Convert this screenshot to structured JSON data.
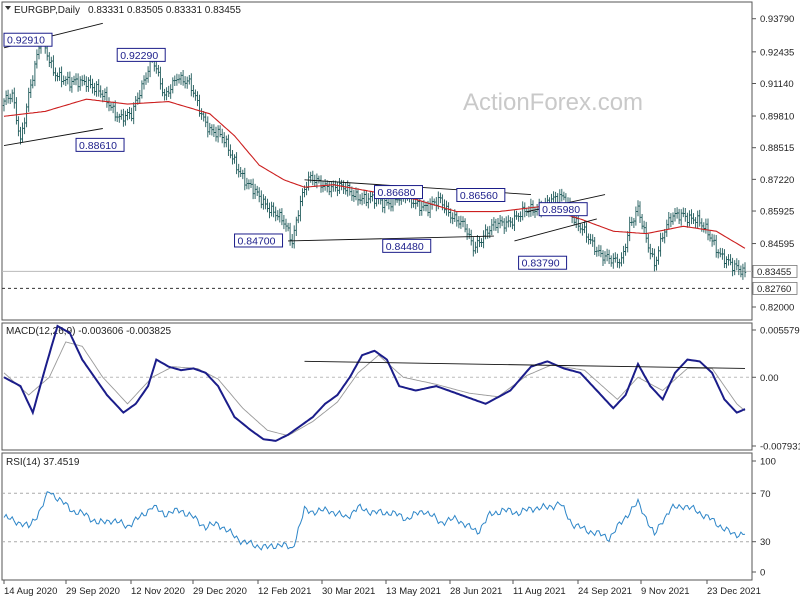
{
  "header": {
    "symbol": "EURGBP,Daily",
    "ohlc": "0.83331 0.83505 0.83331 0.83455"
  },
  "watermark": "ActionForex.com",
  "x_labels": [
    "14 Aug 2020",
    "29 Sep 2020",
    "12 Nov 2020",
    "29 Dec 2020",
    "12 Feb 2021",
    "30 Mar 2021",
    "13 May 2021",
    "28 Jun 2021",
    "11 Aug 2021",
    "24 Sep 2021",
    "9 Nov 2021",
    "23 Dec 2021"
  ],
  "colors": {
    "price": "#1e5a5a",
    "ma": "#cc1f1f",
    "macd": "#1b1d8a",
    "signal": "#9a9a9a",
    "rsi": "#2e86c8",
    "annotation": "#1b1d8a"
  },
  "chart_data": [
    {
      "type": "candlestick",
      "title": "EURGBP,Daily",
      "ylim": [
        0.8155,
        0.9431
      ],
      "y_ticks": [
        "0.93790",
        "0.92435",
        "0.91140",
        "0.89810",
        "0.88515",
        "0.87220",
        "0.85925",
        "0.84595",
        "0.83455",
        "0.82000"
      ],
      "current_price": "0.83455",
      "support_level": "0.82760",
      "price_labels": [
        "0.92910",
        "0.92290",
        "0.88610",
        "0.84700",
        "0.86680",
        "0.84480",
        "0.86560",
        "0.83790",
        "0.85980"
      ],
      "price_path": [
        [
          0,
          0.9042
        ],
        [
          4,
          0.906
        ],
        [
          8,
          0.888
        ],
        [
          12,
          0.9075
        ],
        [
          18,
          0.9291
        ],
        [
          24,
          0.917
        ],
        [
          32,
          0.911
        ],
        [
          40,
          0.913
        ],
        [
          48,
          0.906
        ],
        [
          56,
          0.898
        ],
        [
          62,
          0.898
        ],
        [
          66,
          0.908
        ],
        [
          72,
          0.9229
        ],
        [
          78,
          0.905
        ],
        [
          84,
          0.915
        ],
        [
          90,
          0.911
        ],
        [
          96,
          0.899
        ],
        [
          100,
          0.893
        ],
        [
          106,
          0.889
        ],
        [
          112,
          0.88
        ],
        [
          118,
          0.87
        ],
        [
          124,
          0.865
        ],
        [
          130,
          0.86
        ],
        [
          136,
          0.854
        ],
        [
          140,
          0.847
        ],
        [
          144,
          0.864
        ],
        [
          148,
          0.872
        ],
        [
          156,
          0.87
        ],
        [
          166,
          0.868
        ],
        [
          176,
          0.864
        ],
        [
          186,
          0.863
        ],
        [
          196,
          0.865
        ],
        [
          206,
          0.86
        ],
        [
          212,
          0.864
        ],
        [
          218,
          0.857
        ],
        [
          224,
          0.852
        ],
        [
          228,
          0.8448
        ],
        [
          234,
          0.85
        ],
        [
          240,
          0.854
        ],
        [
          248,
          0.856
        ],
        [
          256,
          0.86
        ],
        [
          264,
          0.862
        ],
        [
          272,
          0.8656
        ],
        [
          278,
          0.854
        ],
        [
          284,
          0.848
        ],
        [
          290,
          0.842
        ],
        [
          296,
          0.838
        ],
        [
          300,
          0.839
        ],
        [
          304,
          0.854
        ],
        [
          308,
          0.8598
        ],
        [
          312,
          0.847
        ],
        [
          316,
          0.8379
        ],
        [
          320,
          0.85
        ],
        [
          324,
          0.856
        ],
        [
          330,
          0.858
        ],
        [
          336,
          0.856
        ],
        [
          342,
          0.85
        ],
        [
          348,
          0.842
        ],
        [
          354,
          0.836
        ],
        [
          360,
          0.8345
        ]
      ],
      "ma_path": [
        [
          0,
          0.898
        ],
        [
          20,
          0.9
        ],
        [
          40,
          0.905
        ],
        [
          60,
          0.903
        ],
        [
          80,
          0.904
        ],
        [
          100,
          0.899
        ],
        [
          112,
          0.89
        ],
        [
          124,
          0.878
        ],
        [
          136,
          0.872
        ],
        [
          146,
          0.869
        ],
        [
          160,
          0.87
        ],
        [
          180,
          0.867
        ],
        [
          200,
          0.864
        ],
        [
          220,
          0.859
        ],
        [
          240,
          0.859
        ],
        [
          260,
          0.861
        ],
        [
          280,
          0.856
        ],
        [
          296,
          0.851
        ],
        [
          312,
          0.85
        ],
        [
          330,
          0.853
        ],
        [
          346,
          0.851
        ],
        [
          360,
          0.844
        ]
      ],
      "trendlines": [
        {
          "name": "channel-top",
          "points": [
            [
              0,
              0.926
            ],
            [
              48,
              0.936
            ]
          ]
        },
        {
          "name": "channel-bottom",
          "points": [
            [
              0,
              0.886
            ],
            [
              48,
              0.893
            ]
          ]
        },
        {
          "name": "triangle-top",
          "points": [
            [
              146,
              0.872
            ],
            [
              256,
              0.866
            ]
          ]
        },
        {
          "name": "triangle-bottom",
          "points": [
            [
              138,
              0.847
            ],
            [
              238,
              0.849
            ]
          ]
        },
        {
          "name": "wedge-top",
          "points": [
            [
              254,
              0.859
            ],
            [
              292,
              0.866
            ]
          ]
        },
        {
          "name": "wedge-bottom",
          "points": [
            [
              248,
              0.847
            ],
            [
              288,
              0.856
            ]
          ]
        }
      ]
    },
    {
      "type": "line",
      "title": "MACD(12,26,9) -0.003606 -0.003825",
      "ylim": [
        -0.008,
        0.0058
      ],
      "y_ticks": [
        "0.005579",
        "0.00",
        "-0.007931"
      ],
      "macd_path": [
        [
          0,
          0.0
        ],
        [
          8,
          -0.001
        ],
        [
          14,
          -0.004
        ],
        [
          20,
          0.001
        ],
        [
          26,
          0.0058
        ],
        [
          32,
          0.005
        ],
        [
          38,
          0.002
        ],
        [
          44,
          0.0
        ],
        [
          50,
          -0.002
        ],
        [
          58,
          -0.004
        ],
        [
          64,
          -0.003
        ],
        [
          70,
          -0.001
        ],
        [
          74,
          0.002
        ],
        [
          80,
          0.0012
        ],
        [
          86,
          0.0008
        ],
        [
          92,
          0.001
        ],
        [
          98,
          0.0005
        ],
        [
          104,
          -0.001
        ],
        [
          112,
          -0.0045
        ],
        [
          120,
          -0.006
        ],
        [
          126,
          -0.007
        ],
        [
          132,
          -0.0072
        ],
        [
          138,
          -0.0065
        ],
        [
          144,
          -0.0055
        ],
        [
          150,
          -0.0045
        ],
        [
          156,
          -0.003
        ],
        [
          162,
          -0.002
        ],
        [
          168,
          0.0
        ],
        [
          174,
          0.0025
        ],
        [
          180,
          0.003
        ],
        [
          186,
          0.002
        ],
        [
          192,
          -0.001
        ],
        [
          200,
          -0.0015
        ],
        [
          210,
          -0.001
        ],
        [
          222,
          -0.002
        ],
        [
          234,
          -0.003
        ],
        [
          246,
          -0.0015
        ],
        [
          256,
          0.0012
        ],
        [
          264,
          0.0018
        ],
        [
          272,
          0.001
        ],
        [
          280,
          0.0005
        ],
        [
          288,
          -0.0015
        ],
        [
          296,
          -0.0035
        ],
        [
          302,
          -0.002
        ],
        [
          308,
          0.0015
        ],
        [
          314,
          -0.001
        ],
        [
          320,
          -0.0025
        ],
        [
          326,
          0.0005
        ],
        [
          332,
          0.002
        ],
        [
          338,
          0.0018
        ],
        [
          344,
          0.0005
        ],
        [
          350,
          -0.0025
        ],
        [
          356,
          -0.004
        ],
        [
          360,
          -0.0036
        ]
      ],
      "signal_path": [
        [
          0,
          0.0005
        ],
        [
          12,
          -0.002
        ],
        [
          22,
          0.0
        ],
        [
          30,
          0.004
        ],
        [
          38,
          0.0035
        ],
        [
          48,
          0.0
        ],
        [
          60,
          -0.003
        ],
        [
          72,
          0.0
        ],
        [
          82,
          0.0012
        ],
        [
          94,
          0.001
        ],
        [
          104,
          -0.0002
        ],
        [
          116,
          -0.0035
        ],
        [
          128,
          -0.006
        ],
        [
          138,
          -0.0066
        ],
        [
          150,
          -0.005
        ],
        [
          162,
          -0.0028
        ],
        [
          172,
          0.0005
        ],
        [
          182,
          0.0025
        ],
        [
          194,
          0.0
        ],
        [
          210,
          -0.0008
        ],
        [
          226,
          -0.0018
        ],
        [
          240,
          -0.0022
        ],
        [
          254,
          0.0002
        ],
        [
          266,
          0.0014
        ],
        [
          282,
          0.0008
        ],
        [
          298,
          -0.0025
        ],
        [
          308,
          0.0
        ],
        [
          320,
          -0.0015
        ],
        [
          332,
          0.001
        ],
        [
          344,
          0.001
        ],
        [
          356,
          -0.003
        ],
        [
          360,
          -0.0038
        ]
      ],
      "trendline": [
        [
          146,
          0.0018
        ],
        [
          360,
          0.001
        ]
      ]
    },
    {
      "type": "line",
      "title": "RSI(14) 37.4519",
      "ylim": [
        0,
        100
      ],
      "y_ticks": [
        "100",
        "70",
        "30",
        "0"
      ],
      "levels": [
        70,
        30
      ],
      "rsi_path": [
        [
          0,
          50
        ],
        [
          6,
          47
        ],
        [
          12,
          42
        ],
        [
          18,
          57
        ],
        [
          22,
          72
        ],
        [
          28,
          63
        ],
        [
          34,
          55
        ],
        [
          40,
          52
        ],
        [
          46,
          45
        ],
        [
          52,
          48
        ],
        [
          60,
          43
        ],
        [
          66,
          50
        ],
        [
          72,
          59
        ],
        [
          78,
          53
        ],
        [
          86,
          56
        ],
        [
          92,
          50
        ],
        [
          98,
          42
        ],
        [
          104,
          45
        ],
        [
          110,
          37
        ],
        [
          116,
          30
        ],
        [
          122,
          27
        ],
        [
          128,
          25
        ],
        [
          134,
          28
        ],
        [
          140,
          24
        ],
        [
          146,
          56
        ],
        [
          150,
          55
        ],
        [
          158,
          56
        ],
        [
          166,
          50
        ],
        [
          172,
          58
        ],
        [
          180,
          54
        ],
        [
          188,
          54
        ],
        [
          196,
          49
        ],
        [
          204,
          56
        ],
        [
          212,
          46
        ],
        [
          220,
          49
        ],
        [
          226,
          42
        ],
        [
          230,
          38
        ],
        [
          236,
          52
        ],
        [
          242,
          56
        ],
        [
          250,
          54
        ],
        [
          258,
          58
        ],
        [
          264,
          58
        ],
        [
          270,
          62
        ],
        [
          276,
          45
        ],
        [
          282,
          40
        ],
        [
          288,
          37
        ],
        [
          294,
          33
        ],
        [
          300,
          46
        ],
        [
          304,
          55
        ],
        [
          308,
          62
        ],
        [
          312,
          50
        ],
        [
          316,
          35
        ],
        [
          320,
          48
        ],
        [
          324,
          57
        ],
        [
          330,
          60
        ],
        [
          336,
          56
        ],
        [
          342,
          50
        ],
        [
          348,
          43
        ],
        [
          354,
          36
        ],
        [
          360,
          37
        ]
      ]
    }
  ]
}
